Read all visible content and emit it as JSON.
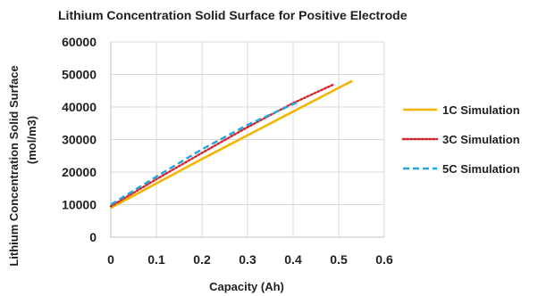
{
  "chart_data": {
    "type": "line",
    "title": "Lithium Concentration Solid Surface for Positive Electrode",
    "xlabel": "Capacity (Ah)",
    "ylabel_line1": "Lithium Concentration Solid Surface",
    "ylabel_line2": "(mol/m3)",
    "xlim": [
      0,
      0.6
    ],
    "ylim": [
      0,
      60000
    ],
    "xticks": [
      0,
      0.1,
      0.2,
      0.3,
      0.4,
      0.5,
      0.6
    ],
    "yticks": [
      0,
      10000,
      20000,
      30000,
      40000,
      50000,
      60000
    ],
    "xtick_labels": [
      "0",
      "0.1",
      "0.2",
      "0.3",
      "0.4",
      "0.5",
      "0.6"
    ],
    "ytick_labels": [
      "0",
      "10000",
      "20000",
      "30000",
      "40000",
      "50000",
      "60000"
    ],
    "grid": true,
    "legend_position": "right",
    "series": [
      {
        "name": "1C Simulation",
        "color": "#f2b400",
        "dash": "solid",
        "x": [
          0,
          0.1,
          0.2,
          0.3,
          0.4,
          0.5,
          0.53
        ],
        "y": [
          9000,
          16500,
          24000,
          31300,
          38600,
          45900,
          48000
        ]
      },
      {
        "name": "3C Simulation",
        "color": "#d4262a",
        "dash": "dotted",
        "x": [
          0,
          0.1,
          0.2,
          0.3,
          0.4,
          0.49
        ],
        "y": [
          9500,
          17800,
          25900,
          33800,
          41200,
          47000
        ]
      },
      {
        "name": "5C Simulation",
        "color": "#22a7e0",
        "dash": "dashed",
        "x": [
          0,
          0.1,
          0.2,
          0.3,
          0.41
        ],
        "y": [
          10000,
          18600,
          27000,
          34500,
          41500
        ]
      }
    ]
  }
}
